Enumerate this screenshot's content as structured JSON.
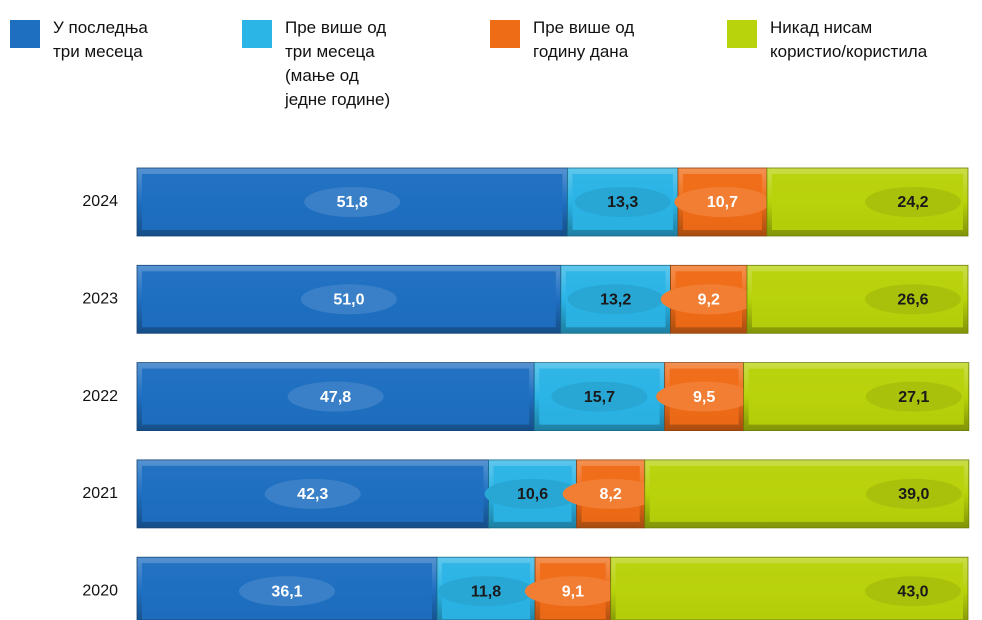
{
  "chart_data": {
    "type": "stacked-bar-horizontal",
    "categories": [
      "2024",
      "2023",
      "2022",
      "2021",
      "2020"
    ],
    "xlim": [
      0,
      100
    ],
    "series": [
      {
        "name": "У последња\nтри месеца",
        "color": "#1f6fc1",
        "values": [
          51.8,
          51.0,
          47.8,
          42.3,
          36.1
        ],
        "value_labels": [
          "51,8",
          "51,0",
          "47,8",
          "42,3",
          "36,1"
        ]
      },
      {
        "name": "Пре више од\nтри месеца\n(мање од\nједне године)",
        "color": "#2bb4e6",
        "values": [
          13.3,
          13.2,
          15.7,
          10.6,
          11.8
        ],
        "value_labels": [
          "13,3",
          "13,2",
          "15,7",
          "10,6",
          "11,8"
        ]
      },
      {
        "name": "Пре више од\nгодину дана",
        "color": "#ef6c17",
        "values": [
          10.7,
          9.2,
          9.5,
          8.2,
          9.1
        ],
        "value_labels": [
          "10,7",
          "9,2",
          "9,5",
          "8,2",
          "9,1"
        ]
      },
      {
        "name": "Никад нисам\nкористио/користила",
        "color": "#b8d20b",
        "values": [
          24.2,
          26.6,
          27.1,
          39.0,
          43.0
        ],
        "value_labels": [
          "24,2",
          "26,6",
          "27,1",
          "39,0",
          "43,0"
        ]
      }
    ]
  }
}
